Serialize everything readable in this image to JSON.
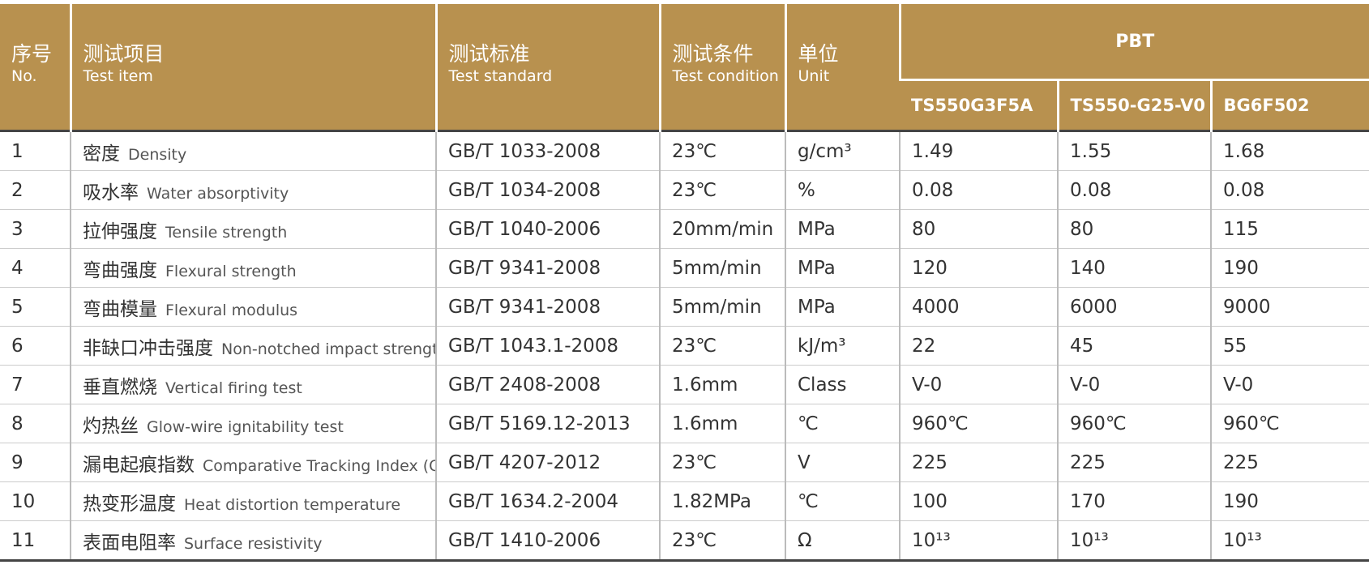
{
  "header": {
    "columns": [
      {
        "cn": "序号",
        "en": "No."
      },
      {
        "cn": "测试项目",
        "en": "Test item"
      },
      {
        "cn": "测试标准",
        "en": "Test standard"
      },
      {
        "cn": "测试条件",
        "en": "Test condition"
      },
      {
        "cn": "单位",
        "en": "Unit"
      }
    ],
    "group": "PBT",
    "grades": [
      "TS550G3F5A",
      "TS550-G25-V0",
      "BG6F502"
    ]
  },
  "table": {
    "rows": [
      {
        "no": 1,
        "item_cn": "密度",
        "item_en": "Density",
        "standard": "GB/T 1033-2008",
        "condition": "23℃",
        "unit": "g/cm³",
        "values": [
          1.49,
          1.55,
          1.68
        ]
      },
      {
        "no": 2,
        "item_cn": "吸水率",
        "item_en": "Water absorptivity",
        "standard": "GB/T 1034-2008",
        "condition": "23℃",
        "unit": "%",
        "values": [
          0.08,
          0.08,
          0.08
        ]
      },
      {
        "no": 3,
        "item_cn": "拉伸强度",
        "item_en": "Tensile strength",
        "standard": "GB/T 1040-2006",
        "condition": "20mm/min",
        "unit": "MPa",
        "values": [
          80,
          80,
          115
        ]
      },
      {
        "no": 4,
        "item_cn": "弯曲强度",
        "item_en": "Flexural strength",
        "standard": "GB/T 9341-2008",
        "condition": "5mm/min",
        "unit": "MPa",
        "values": [
          120,
          140,
          190
        ]
      },
      {
        "no": 5,
        "item_cn": "弯曲模量",
        "item_en": "Flexural modulus",
        "standard": "GB/T 9341-2008",
        "condition": "5mm/min",
        "unit": "MPa",
        "values": [
          4000,
          6000,
          9000
        ]
      },
      {
        "no": 6,
        "item_cn": "非缺口冲击强度",
        "item_en": "Non-notched impact strength",
        "standard": "GB/T 1043.1-2008",
        "condition": "23℃",
        "unit": "kJ/m³",
        "values": [
          22,
          45,
          55
        ]
      },
      {
        "no": 7,
        "item_cn": "垂直燃烧",
        "item_en": "Vertical firing test",
        "standard": "GB/T 2408-2008",
        "condition": "1.6mm",
        "unit": "Class",
        "values": [
          "V-0",
          "V-0",
          "V-0"
        ]
      },
      {
        "no": 8,
        "item_cn": "灼热丝",
        "item_en": "Glow-wire ignitability test",
        "standard": "GB/T 5169.12-2013",
        "condition": "1.6mm",
        "unit": "℃",
        "values": [
          "960℃",
          "960℃",
          "960℃"
        ]
      },
      {
        "no": 9,
        "item_cn": "漏电起痕指数",
        "item_en": "Comparative Tracking Index (CTI)",
        "standard": "GB/T 4207-2012",
        "condition": "23℃",
        "unit": "V",
        "values": [
          225,
          225,
          225
        ]
      },
      {
        "no": 10,
        "item_cn": "热变形温度",
        "item_en": "Heat distortion temperature",
        "standard": "GB/T 1634.2-2004",
        "condition": "1.82MPa",
        "unit": "℃",
        "values": [
          100,
          170,
          190
        ]
      },
      {
        "no": 11,
        "item_cn": "表面电阻率",
        "item_en": "Surface resistivity",
        "standard": "GB/T 1410-2006",
        "condition": "23℃",
        "unit": "Ω",
        "values": [
          "10¹³",
          "10¹³",
          "10¹³"
        ]
      }
    ]
  }
}
